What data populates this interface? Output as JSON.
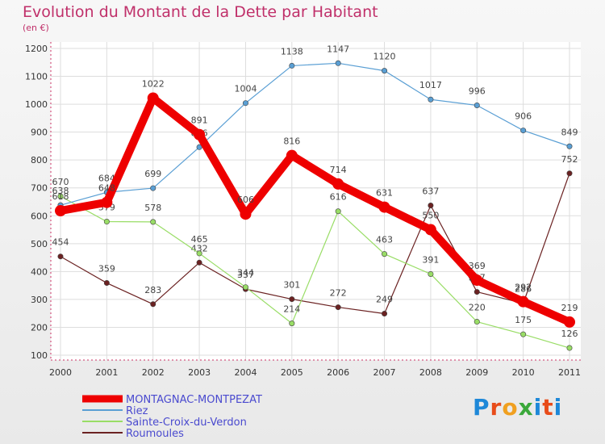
{
  "title": "Evolution du Montant de la Dette par Habitant",
  "subtitle": "(en €)",
  "logo_text": "Proxiti",
  "chart_data": {
    "type": "line",
    "title": "Evolution du Montant de la Dette par Habitant",
    "subtitle": "(en €)",
    "xlabel": "",
    "ylabel": "",
    "categories": [
      "2000",
      "2001",
      "2002",
      "2003",
      "2004",
      "2005",
      "2006",
      "2007",
      "2008",
      "2009",
      "2010",
      "2011"
    ],
    "ylim": [
      100,
      1200
    ],
    "yticks": [
      100,
      200,
      300,
      400,
      500,
      600,
      700,
      800,
      900,
      1000,
      1100,
      1200
    ],
    "grid": true,
    "legend": "bottom-left",
    "series": [
      {
        "name": "MONTAGNAC-MONTPEZAT",
        "color": "#ee0000",
        "values": [
          618,
          648,
          1022,
          891,
          606,
          816,
          714,
          631,
          550,
          369,
          292,
          219
        ]
      },
      {
        "name": "Riez",
        "color": "#5a9fd4",
        "values": [
          638,
          684,
          699,
          846,
          1004,
          1138,
          1147,
          1120,
          1017,
          996,
          906,
          849
        ]
      },
      {
        "name": "Sainte-Croix-du-Verdon",
        "color": "#99dd66",
        "values": [
          670,
          579,
          578,
          465,
          344,
          214,
          616,
          463,
          391,
          220,
          175,
          126
        ]
      },
      {
        "name": "Roumoules",
        "color": "#6b2222",
        "values": [
          454,
          359,
          283,
          432,
          337,
          301,
          272,
          249,
          637,
          327,
          286,
          752
        ]
      }
    ]
  }
}
